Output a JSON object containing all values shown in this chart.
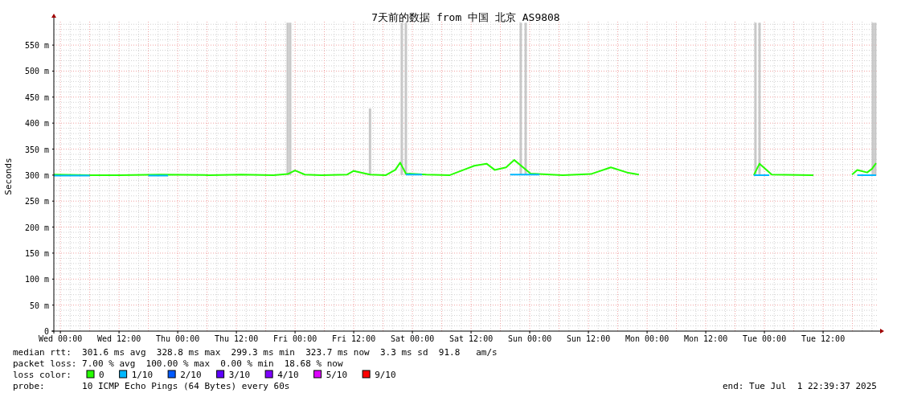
{
  "chart_data": {
    "type": "line",
    "title": "7天前的数据 from 中国 北京 AS9808",
    "ylabel": "Seconds",
    "xlim": [
      "2025-06-24T22:40",
      "2025-07-01T23:10"
    ],
    "xticks": [
      {
        "value": "2025-06-25T00:00",
        "label": "Wed 00:00"
      },
      {
        "value": "2025-06-25T12:00",
        "label": "Wed 12:00"
      },
      {
        "value": "2025-06-26T00:00",
        "label": "Thu 00:00"
      },
      {
        "value": "2025-06-26T12:00",
        "label": "Thu 12:00"
      },
      {
        "value": "2025-06-27T00:00",
        "label": "Fri 00:00"
      },
      {
        "value": "2025-06-27T12:00",
        "label": "Fri 12:00"
      },
      {
        "value": "2025-06-28T00:00",
        "label": "Sat 00:00"
      },
      {
        "value": "2025-06-28T12:00",
        "label": "Sat 12:00"
      },
      {
        "value": "2025-06-29T00:00",
        "label": "Sun 00:00"
      },
      {
        "value": "2025-06-29T12:00",
        "label": "Sun 12:00"
      },
      {
        "value": "2025-06-30T00:00",
        "label": "Mon 00:00"
      },
      {
        "value": "2025-06-30T12:00",
        "label": "Mon 12:00"
      },
      {
        "value": "2025-07-01T00:00",
        "label": "Tue 00:00"
      },
      {
        "value": "2025-07-01T12:00",
        "label": "Tue 12:00"
      }
    ],
    "ylim": [
      0,
      595
    ],
    "yticks": [
      0,
      {
        "value": 50,
        "label": "50 m"
      },
      {
        "value": 100,
        "label": "100 m"
      },
      {
        "value": 150,
        "label": "150 m"
      },
      {
        "value": 200,
        "label": "200 m"
      },
      {
        "value": 250,
        "label": "250 m"
      },
      {
        "value": 300,
        "label": "300 m"
      },
      {
        "value": 350,
        "label": "350 m"
      },
      {
        "value": 400,
        "label": "400 m"
      },
      {
        "value": 450,
        "label": "450 m"
      },
      {
        "value": 500,
        "label": "500 m"
      },
      {
        "value": 550,
        "label": "550 m"
      }
    ],
    "grid": true,
    "legend": "bottom",
    "legend_title": "loss color:",
    "series": [
      {
        "type": "bar",
        "color": "#c8c8c8",
        "x": [
          "2025-06-26T22:30",
          "2025-06-26T23:00",
          "2025-06-27T15:20",
          "2025-06-27T21:50",
          "2025-06-27T22:40",
          "2025-06-28T22:10",
          "2025-06-28T23:10",
          "2025-06-30T22:10",
          "2025-06-30T23:00",
          "2025-07-01T22:10",
          "2025-07-01T22:40"
        ],
        "base": [
          300,
          300,
          300,
          300,
          300,
          300,
          300,
          300,
          300,
          300,
          300
        ],
        "values": [
          293,
          293,
          128,
          293,
          293,
          293,
          293,
          293,
          293,
          293,
          293
        ]
      },
      {
        "name": "0",
        "color": "#26ff00",
        "x": [
          "2025-06-24T22:40",
          "2025-06-25T06:00",
          "2025-06-25T12:00",
          "2025-06-25T20:30",
          "2025-06-26T06:25",
          "2025-06-26T13:00",
          "2025-06-26T19:35",
          "2025-06-26T22:30",
          "2025-06-27T00:00",
          "2025-06-27T02:00",
          "2025-06-27T05:25",
          "2025-06-27T10:40",
          "2025-06-27T12:00",
          "2025-06-27T15:20",
          "2025-06-27T18:35",
          "2025-06-27T20:30",
          "2025-06-27T21:30",
          "2025-06-27T22:40",
          "2025-06-28T02:50",
          "2025-06-28T07:40",
          "2025-06-28T11:00",
          "2025-06-28T12:40",
          "2025-06-28T15:10",
          "2025-06-28T16:50",
          "2025-06-28T19:10",
          "2025-06-28T20:50",
          "2025-06-29T00:10",
          "2025-06-29T06:45",
          "2025-06-29T12:30",
          "2025-06-29T16:35",
          "2025-06-29T19:55",
          "2025-06-29T22:20",
          "2025-06-30T12:00",
          "2025-06-30T21:50",
          "2025-06-30T23:00",
          "2025-07-01T01:30",
          "2025-07-01T10:00",
          "2025-07-01T14:00",
          "2025-07-01T17:55",
          "2025-07-01T19:00",
          "2025-07-01T21:00",
          "2025-07-01T22:00",
          "2025-07-01T22:50"
        ],
        "values": [
          301,
          300,
          300,
          301,
          300,
          301,
          300,
          302,
          309,
          301,
          300,
          301,
          308,
          301,
          300,
          310,
          324,
          303,
          301,
          300,
          312,
          318,
          322,
          310,
          315,
          329,
          303,
          300,
          302,
          315,
          305,
          301,
          null,
          300,
          322,
          301,
          300,
          null,
          301,
          310,
          305,
          312,
          323
        ]
      },
      {
        "name": "1/10",
        "color": "#00b8ff",
        "x": [
          "2025-06-24T22:40",
          "2025-06-25T06:00",
          "2025-06-25T09:00",
          "2025-06-25T18:00",
          "2025-06-25T22:00",
          "2025-06-26T00:00",
          "2025-06-27T22:40",
          "2025-06-28T02:00",
          "2025-06-28T04:00",
          "2025-06-28T20:00",
          "2025-06-29T02:00",
          "2025-06-29T04:00",
          "2025-06-30T21:50",
          "2025-07-01T01:00",
          "2025-07-01T03:00",
          "2025-07-01T19:00",
          "2025-07-01T22:50"
        ],
        "values": [
          299,
          299,
          null,
          299,
          299,
          null,
          301,
          301,
          null,
          301,
          301,
          null,
          300,
          300,
          null,
          300,
          300
        ]
      },
      {
        "name": "2/10",
        "color": "#0059ff"
      },
      {
        "name": "3/10",
        "color": "#5e00ff"
      },
      {
        "name": "4/10",
        "color": "#7e00ff"
      },
      {
        "name": "5/10",
        "color": "#dd00ff"
      },
      {
        "name": "9/10",
        "color": "#ff0000"
      }
    ],
    "annotations": [
      "median rtt:  301.6 ms avg  328.8 ms max  299.3 ms min  323.7 ms now  3.3 ms sd  91.8   am/s",
      "packet loss: 7.00 % avg  100.00 % max  0.00 % min  18.68 % now",
      "probe:       10 ICMP Echo Pings (64 Bytes) every 60s",
      "end: Tue Jul  1 22:39:37 2025"
    ]
  }
}
